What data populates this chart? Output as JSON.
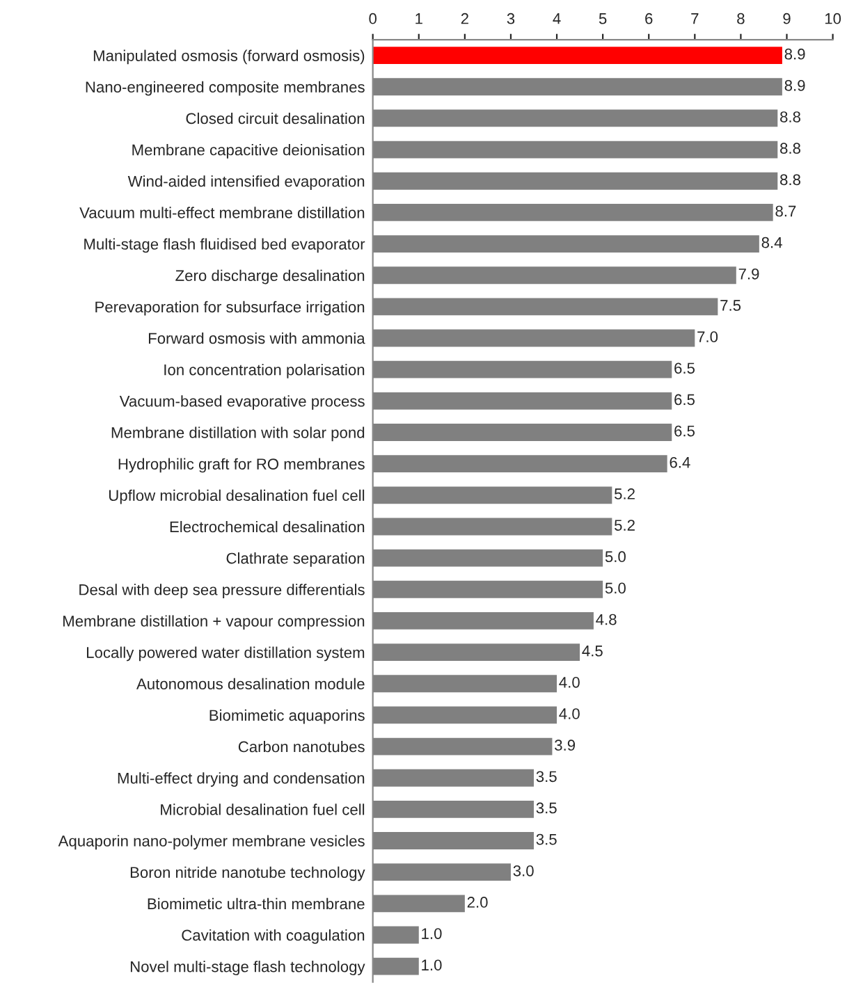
{
  "chart_data": {
    "type": "bar",
    "orientation": "horizontal",
    "categories": [
      "Manipulated osmosis (forward osmosis)",
      "Nano-engineered composite membranes",
      "Closed circuit desalination",
      "Membrane capacitive deionisation",
      "Wind-aided intensified evaporation",
      "Vacuum multi-effect membrane distillation",
      "Multi-stage flash fluidised bed evaporator",
      "Zero discharge desalination",
      "Perevaporation for subsurface irrigation",
      "Forward osmosis with ammonia",
      "Ion concentration polarisation",
      "Vacuum-based evaporative process",
      "Membrane distillation with solar pond",
      "Hydrophilic graft for RO membranes",
      "Upflow microbial desalination fuel cell",
      "Electrochemical desalination",
      "Clathrate separation",
      "Desal with deep sea pressure differentials",
      "Membrane distillation + vapour compression",
      "Locally powered water distillation system",
      "Autonomous desalination module",
      "Biomimetic aquaporins",
      "Carbon nanotubes",
      "Multi-effect drying and condensation",
      "Microbial desalination fuel cell",
      "Aquaporin nano-polymer membrane vesicles",
      "Boron nitride nanotube technology",
      "Biomimetic ultra-thin membrane",
      "Cavitation with coagulation",
      "Novel multi-stage flash technology"
    ],
    "values": [
      8.9,
      8.9,
      8.8,
      8.8,
      8.8,
      8.7,
      8.4,
      7.9,
      7.5,
      7.0,
      6.5,
      6.5,
      6.5,
      6.4,
      5.2,
      5.2,
      5.0,
      5.0,
      4.8,
      4.5,
      4.0,
      4.0,
      3.9,
      3.5,
      3.5,
      3.5,
      3.0,
      2.0,
      1.0,
      1.0
    ],
    "value_labels": [
      "8.9",
      "8.9",
      "8.8",
      "8.8",
      "8.8",
      "8.7",
      "8.4",
      "7.9",
      "7.5",
      "7.0",
      "6.5",
      "6.5",
      "6.5",
      "6.4",
      "5.2",
      "5.2",
      "5.0",
      "5.0",
      "4.8",
      "4.5",
      "4.0",
      "4.0",
      "3.9",
      "3.5",
      "3.5",
      "3.5",
      "3.0",
      "2.0",
      "1.0",
      "1.0"
    ],
    "colors": [
      "#ff0000",
      "#808080",
      "#808080",
      "#808080",
      "#808080",
      "#808080",
      "#808080",
      "#808080",
      "#808080",
      "#808080",
      "#808080",
      "#808080",
      "#808080",
      "#808080",
      "#808080",
      "#808080",
      "#808080",
      "#808080",
      "#808080",
      "#808080",
      "#808080",
      "#808080",
      "#808080",
      "#808080",
      "#808080",
      "#808080",
      "#808080",
      "#808080",
      "#808080",
      "#808080"
    ],
    "xlim": [
      0,
      10
    ],
    "xticks": [
      0,
      1,
      2,
      3,
      4,
      5,
      6,
      7,
      8,
      9,
      10
    ],
    "grid": false,
    "legend": false
  }
}
